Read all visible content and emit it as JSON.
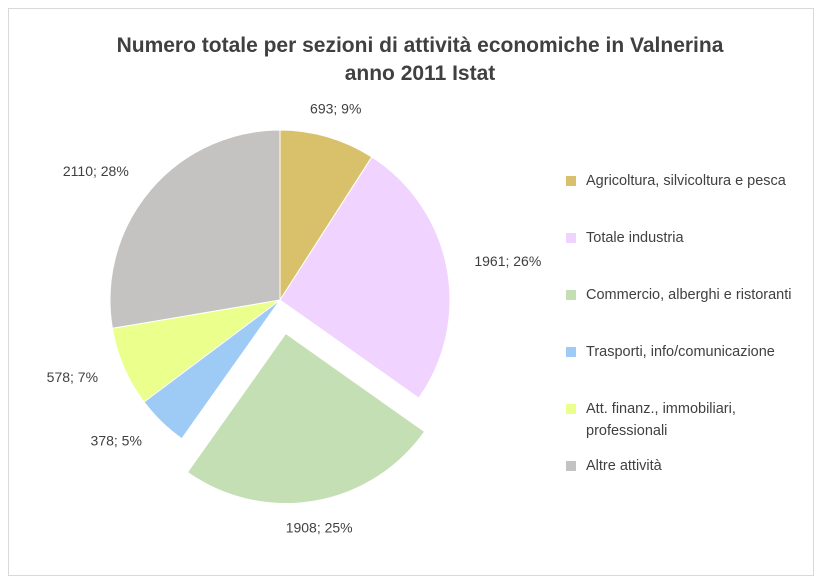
{
  "chart_data": {
    "type": "pie",
    "title": "Numero totale per sezioni di attività economiche in Valnerina anno 2011 Istat",
    "categories": [
      "Agricoltura, silvicoltura e pesca",
      "Totale industria",
      "Commercio, alberghi e ristoranti",
      "Trasporti, info/comunicazione",
      "Att. finanz., immobiliari, professionali",
      "Altre attività"
    ],
    "values": [
      693,
      1961,
      1908,
      378,
      578,
      2110
    ],
    "value_labels": [
      "693; 9%",
      "1961; 26%",
      "1908; 25%",
      "378; 5%",
      "578; 7%",
      "2110; 28%"
    ],
    "colors": [
      "#d9c16b",
      "#f0d3ff",
      "#c5dfb5",
      "#9ecbf6",
      "#eaff8c",
      "#c5c3c1"
    ],
    "exploded": 2,
    "legend": "right"
  }
}
